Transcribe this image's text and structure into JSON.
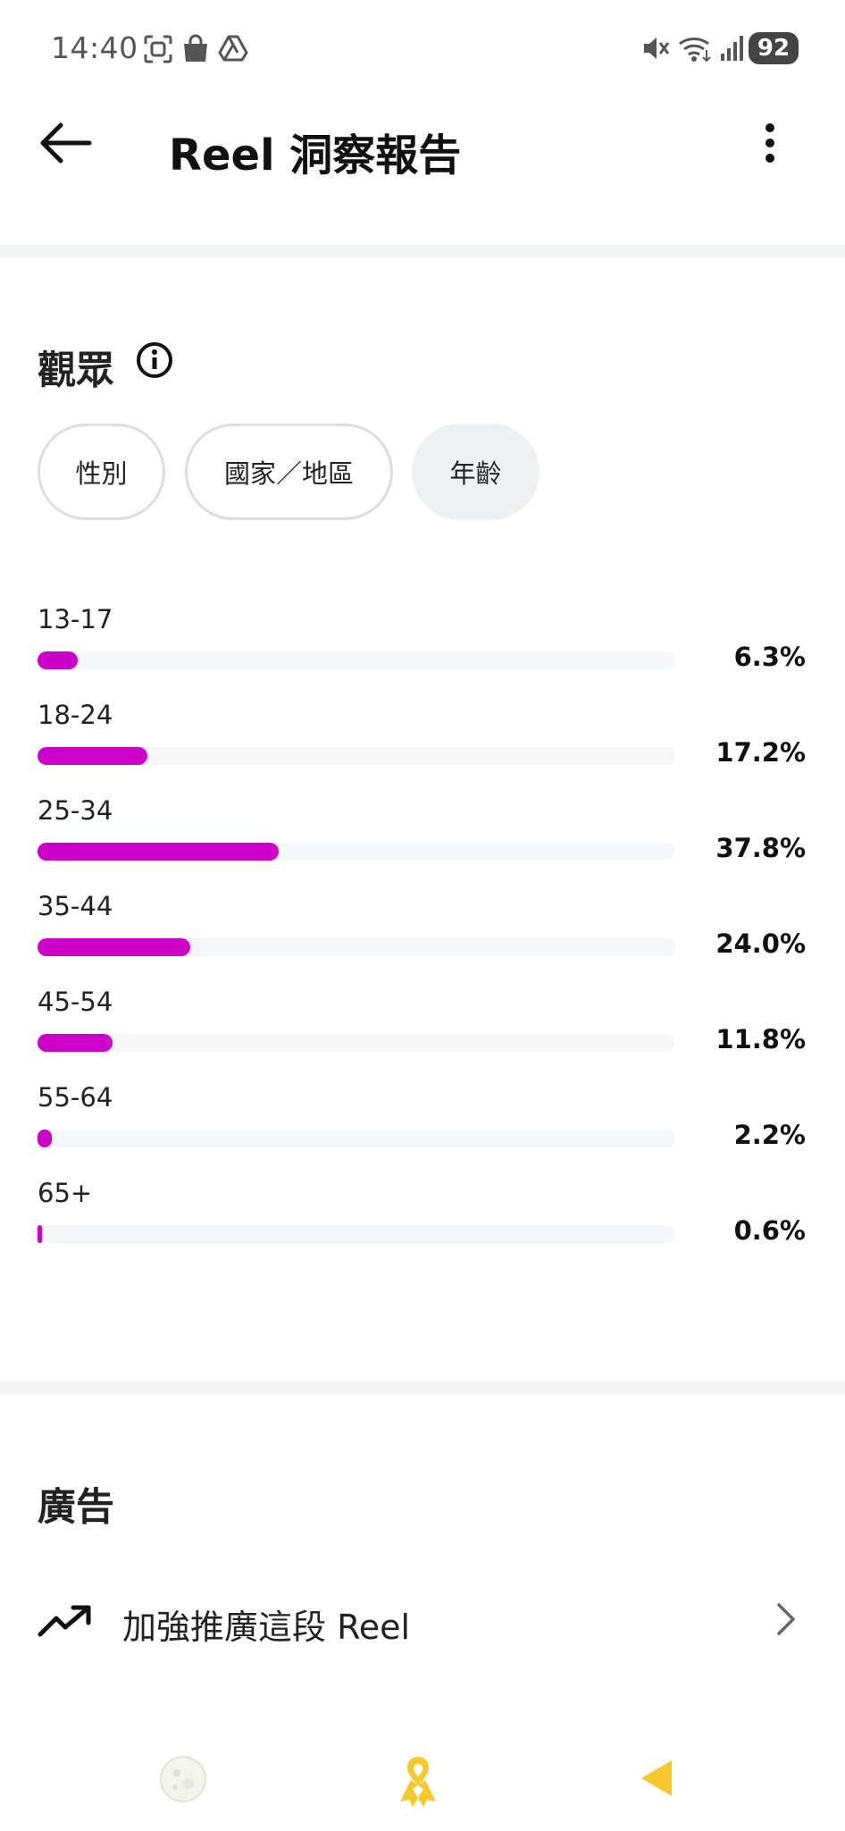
{
  "status_bar": {
    "time": "14:40",
    "battery": "92",
    "icons": [
      "screenshot-icon",
      "shopping-bag-icon",
      "drive-icon",
      "mute-icon",
      "wifi-icon",
      "signal-icon",
      "battery-icon"
    ]
  },
  "header": {
    "title": "Reel 洞察報告",
    "back_icon": "arrow-left-icon",
    "more_icon": "more-vertical-icon"
  },
  "audience": {
    "title": "觀眾",
    "info_icon": "info-icon",
    "tabs": [
      {
        "label": "性別",
        "active": false
      },
      {
        "label": "國家／地區",
        "active": false
      },
      {
        "label": "年齡",
        "active": true
      }
    ],
    "accent_color": "#cc00c8"
  },
  "chart_data": {
    "type": "bar",
    "categories": [
      "13-17",
      "18-24",
      "25-34",
      "35-44",
      "45-54",
      "55-64",
      "65+"
    ],
    "values": [
      6.3,
      17.2,
      37.8,
      24.0,
      11.8,
      2.2,
      0.6
    ],
    "value_labels": [
      "6.3%",
      "17.2%",
      "37.8%",
      "24.0%",
      "11.8%",
      "2.2%",
      "0.6%"
    ],
    "ylim": [
      0,
      100
    ]
  },
  "ads": {
    "title": "廣告",
    "promote_label": "加強推廣這段 Reel",
    "promote_icon": "trending-up-icon",
    "chevron_icon": "chevron-right-icon"
  },
  "nav_bar": {
    "icons": [
      "moon-icon",
      "ribbon-icon",
      "back-triangle-icon"
    ]
  }
}
